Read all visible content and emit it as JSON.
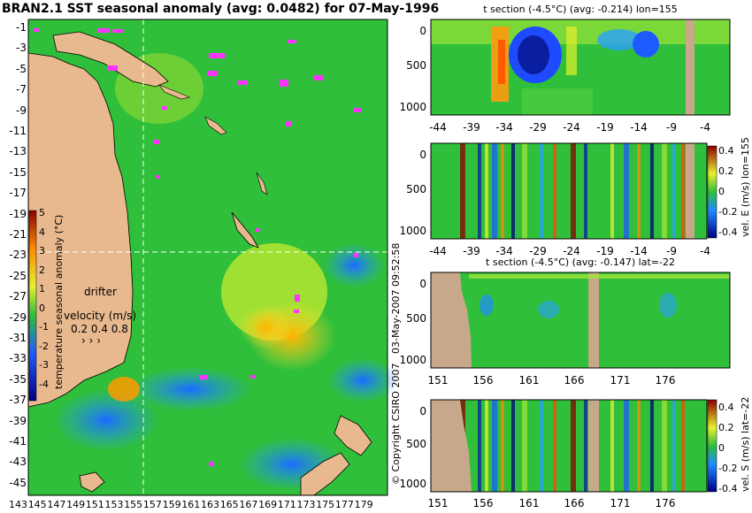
{
  "main_map": {
    "title": "BRAN2.1 SST seasonal anomaly (avg: 0.0482) for 07-May-1996",
    "lat_ticks": [
      "-1",
      "-3",
      "-5",
      "-7",
      "-9",
      "-11",
      "-13",
      "-15",
      "-17",
      "-19",
      "-21",
      "-23",
      "-25",
      "-27",
      "-29",
      "-31",
      "-33",
      "-35",
      "-37",
      "-39",
      "-41",
      "-43",
      "-45"
    ],
    "lon_ticks": [
      "143",
      "145",
      "147",
      "149",
      "151",
      "153",
      "155",
      "157",
      "159",
      "161",
      "163",
      "165",
      "167",
      "169",
      "171",
      "173",
      "175",
      "177",
      "179"
    ],
    "colorbar_label": "temperature seasonal anomaly (°C)",
    "colorbar_ticks": [
      "5",
      "4",
      "3",
      "2",
      "1",
      "0",
      "-1",
      "-2",
      "-3",
      "-4"
    ],
    "legend_drifter": "drifter",
    "legend_velocity_title": "velocity (m/s)",
    "legend_velocity_values": "0.2 0.4 0.8",
    "section_lon": 155,
    "section_lat": -22
  },
  "panels": [
    {
      "title": "t section (-4.5°C) (avg: -0.214) lon=155",
      "y_ticks": [
        "0",
        "500",
        "1000"
      ],
      "x_ticks": [
        "-44",
        "-39",
        "-34",
        "-29",
        "-24",
        "-19",
        "-14",
        "-9",
        "-4"
      ]
    },
    {
      "title": "",
      "y_ticks": [
        "0",
        "500",
        "1000"
      ],
      "x_ticks": [
        "-44",
        "-39",
        "-34",
        "-29",
        "-24",
        "-19",
        "-14",
        "-9",
        "-4"
      ],
      "colorbar_label": "vel. E (m/s) lon=155",
      "colorbar_ticks": [
        "0.4",
        "0.2",
        "0",
        "-0.2",
        "-0.4"
      ]
    },
    {
      "title": "t section (-4.5°C) (avg: -0.147) lat=-22",
      "y_ticks": [
        "0",
        "500",
        "1000"
      ],
      "x_ticks": [
        "151",
        "156",
        "161",
        "166",
        "171",
        "176"
      ]
    },
    {
      "title": "",
      "y_ticks": [
        "0",
        "500",
        "1000"
      ],
      "x_ticks": [
        "151",
        "156",
        "161",
        "166",
        "171",
        "176"
      ],
      "colorbar_label": "vel. S (m/s) lat=-22",
      "colorbar_ticks": [
        "0.4",
        "0.2",
        "0",
        "-0.2",
        "-0.4"
      ]
    }
  ],
  "timestamp": "03-May-2007 09:52:58",
  "copyright": "© Copyright CSIRO 2007",
  "colors": {
    "ocean": "#2fbf3a",
    "land": "#e8b98f",
    "drifter": "#ff33ff",
    "section_land": "#c8a88a"
  }
}
